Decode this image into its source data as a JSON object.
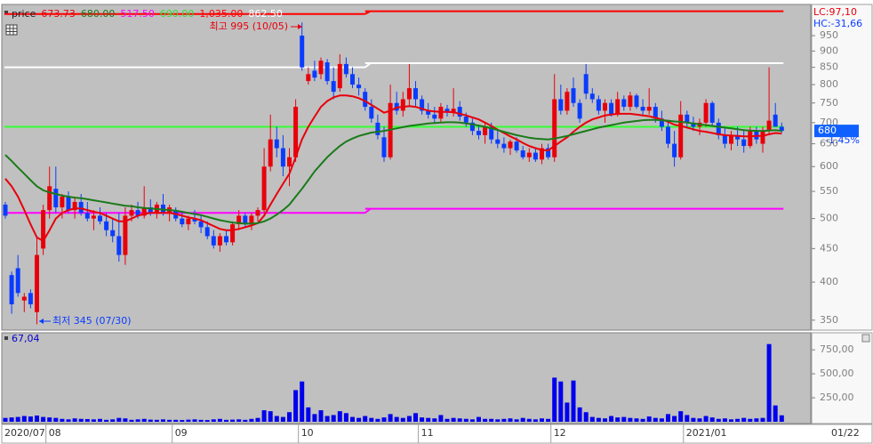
{
  "chart_data": {
    "type": "candlestick",
    "categories": [
      "2020/07",
      null,
      null,
      null,
      null,
      null,
      null,
      "08",
      null,
      null,
      null,
      null,
      null,
      null,
      null,
      null,
      null,
      null,
      null,
      null,
      null,
      null,
      null,
      null,
      null,
      null,
      null,
      "09",
      null,
      null,
      null,
      null,
      null,
      null,
      null,
      null,
      null,
      null,
      null,
      null,
      null,
      null,
      null,
      null,
      null,
      null,
      null,
      "10",
      null,
      null,
      null,
      null,
      null,
      null,
      null,
      null,
      null,
      null,
      null,
      null,
      null,
      null,
      null,
      null,
      null,
      null,
      "11",
      null,
      null,
      null,
      null,
      null,
      null,
      null,
      null,
      null,
      null,
      null,
      null,
      null,
      null,
      null,
      null,
      null,
      null,
      null,
      null,
      "12",
      null,
      null,
      null,
      null,
      null,
      null,
      null,
      null,
      null,
      null,
      null,
      null,
      null,
      null,
      null,
      null,
      null,
      null,
      null,
      null,
      "2021/01",
      null,
      null,
      null,
      null,
      null,
      null,
      null,
      null,
      null,
      null,
      null,
      null,
      null,
      null,
      null
    ],
    "last_date": "01/22",
    "ohlc": {
      "open": [
        525,
        410,
        420,
        375,
        385,
        360,
        450,
        515,
        555,
        520,
        540,
        515,
        530,
        510,
        500,
        505,
        495,
        480,
        470,
        440,
        505,
        515,
        505,
        520,
        510,
        525,
        510,
        515,
        500,
        490,
        500,
        495,
        485,
        470,
        455,
        470,
        460,
        490,
        505,
        490,
        505,
        515,
        600,
        660,
        640,
        600,
        620,
        950,
        810,
        840,
        830,
        865,
        810,
        790,
        860,
        830,
        800,
        780,
        740,
        700,
        665,
        620,
        750,
        730,
        760,
        790,
        760,
        730,
        720,
        710,
        735,
        725,
        740,
        715,
        700,
        680,
        670,
        690,
        660,
        650,
        640,
        655,
        635,
        620,
        630,
        615,
        640,
        620,
        760,
        730,
        790,
        750,
        830,
        775,
        760,
        730,
        750,
        720,
        760,
        740,
        770,
        740,
        730,
        740,
        710,
        690,
        650,
        620,
        720,
        700,
        690,
        700,
        750,
        700,
        670,
        650,
        670,
        660,
        645,
        680,
        650,
        680,
        720,
        690
      ],
      "high": [
        530,
        415,
        440,
        385,
        390,
        470,
        525,
        600,
        600,
        545,
        550,
        540,
        545,
        530,
        515,
        520,
        510,
        500,
        510,
        520,
        525,
        530,
        560,
        535,
        530,
        545,
        525,
        520,
        510,
        505,
        515,
        505,
        495,
        480,
        475,
        480,
        495,
        515,
        510,
        510,
        520,
        640,
        720,
        690,
        670,
        640,
        760,
        995,
        850,
        870,
        880,
        875,
        850,
        890,
        880,
        850,
        820,
        790,
        760,
        720,
        690,
        800,
        780,
        780,
        860,
        810,
        770,
        750,
        740,
        750,
        745,
        790,
        755,
        725,
        710,
        695,
        700,
        700,
        680,
        665,
        660,
        665,
        645,
        640,
        640,
        650,
        650,
        830,
        800,
        790,
        820,
        760,
        860,
        790,
        770,
        760,
        760,
        780,
        770,
        780,
        775,
        760,
        790,
        750,
        730,
        700,
        680,
        755,
        730,
        715,
        710,
        760,
        755,
        710,
        690,
        680,
        690,
        680,
        690,
        690,
        690,
        850,
        750,
        700
      ],
      "low": [
        500,
        358,
        380,
        360,
        365,
        345,
        440,
        500,
        510,
        500,
        510,
        500,
        505,
        495,
        480,
        490,
        470,
        460,
        430,
        425,
        495,
        500,
        500,
        505,
        500,
        505,
        495,
        495,
        485,
        480,
        490,
        475,
        465,
        450,
        445,
        455,
        455,
        480,
        485,
        480,
        495,
        510,
        590,
        620,
        580,
        560,
        610,
        840,
        800,
        810,
        815,
        800,
        760,
        780,
        820,
        790,
        770,
        730,
        700,
        660,
        610,
        615,
        720,
        715,
        740,
        740,
        720,
        710,
        700,
        700,
        715,
        715,
        705,
        690,
        670,
        660,
        650,
        650,
        640,
        630,
        625,
        630,
        615,
        610,
        610,
        605,
        615,
        610,
        720,
        720,
        740,
        700,
        760,
        750,
        720,
        700,
        715,
        715,
        730,
        730,
        735,
        720,
        720,
        700,
        680,
        640,
        600,
        615,
        690,
        680,
        670,
        690,
        690,
        660,
        640,
        635,
        645,
        630,
        640,
        650,
        630,
        670,
        690,
        675
      ],
      "close": [
        505,
        370,
        385,
        380,
        370,
        440,
        515,
        560,
        520,
        540,
        515,
        530,
        510,
        500,
        505,
        495,
        480,
        470,
        440,
        505,
        515,
        505,
        520,
        510,
        525,
        510,
        520,
        500,
        490,
        500,
        495,
        485,
        470,
        455,
        470,
        460,
        490,
        505,
        490,
        505,
        515,
        600,
        660,
        640,
        600,
        620,
        740,
        850,
        830,
        820,
        870,
        810,
        780,
        860,
        830,
        800,
        790,
        740,
        710,
        670,
        620,
        750,
        730,
        760,
        790,
        760,
        730,
        720,
        710,
        740,
        725,
        735,
        715,
        700,
        680,
        670,
        690,
        660,
        650,
        640,
        655,
        635,
        620,
        630,
        615,
        640,
        620,
        760,
        730,
        780,
        750,
        710,
        775,
        760,
        730,
        750,
        720,
        760,
        740,
        770,
        740,
        730,
        740,
        710,
        690,
        650,
        620,
        720,
        700,
        690,
        700,
        750,
        700,
        670,
        650,
        670,
        660,
        645,
        680,
        660,
        680,
        705,
        690,
        680
      ]
    },
    "up_color": "#e8000b",
    "down_color": "#0a3cff",
    "moving_averages": [
      {
        "color": "#e8000b",
        "values": [
          575,
          560,
          540,
          515,
          490,
          468,
          462,
          480,
          500,
          510,
          515,
          518,
          518,
          515,
          512,
          510,
          505,
          500,
          495,
          495,
          500,
          505,
          508,
          510,
          510,
          510,
          510,
          508,
          505,
          502,
          500,
          497,
          492,
          487,
          482,
          480,
          480,
          482,
          485,
          488,
          492,
          505,
          525,
          545,
          565,
          585,
          620,
          660,
          690,
          715,
          740,
          755,
          765,
          770,
          770,
          768,
          763,
          755,
          745,
          735,
          725,
          730,
          738,
          740,
          742,
          740,
          735,
          730,
          728,
          727,
          727,
          726,
          722,
          718,
          713,
          708,
          700,
          692,
          683,
          675,
          667,
          660,
          652,
          645,
          640,
          636,
          635,
          645,
          655,
          665,
          678,
          690,
          700,
          708,
          713,
          718,
          720,
          722,
          722,
          722,
          720,
          718,
          716,
          712,
          708,
          702,
          695,
          692,
          688,
          684,
          680,
          678,
          675,
          672,
          670,
          669,
          668,
          667,
          667,
          668,
          668,
          672,
          675,
          673.73
        ]
      },
      {
        "color": "#1a7a1a",
        "values": [
          625,
          612,
          598,
          585,
          572,
          560,
          552,
          548,
          545,
          542,
          540,
          538,
          537,
          535,
          533,
          531,
          529,
          527,
          525,
          523,
          522,
          520,
          519,
          518,
          517,
          516,
          515,
          514,
          512,
          510,
          508,
          506,
          503,
          500,
          497,
          495,
          493,
          492,
          491,
          491,
          492,
          495,
          500,
          507,
          515,
          525,
          540,
          555,
          572,
          590,
          605,
          620,
          633,
          645,
          655,
          662,
          668,
          672,
          676,
          678,
          680,
          683,
          686,
          689,
          692,
          694,
          696,
          698,
          699,
          700,
          701,
          701,
          700,
          698,
          696,
          693,
          690,
          686,
          682,
          678,
          674,
          670,
          667,
          664,
          662,
          661,
          660,
          662,
          665,
          668,
          672,
          676,
          680,
          684,
          688,
          691,
          694,
          697,
          700,
          702,
          704,
          706,
          707,
          707,
          706,
          705,
          703,
          702,
          700,
          698,
          696,
          694,
          692,
          690,
          688,
          686,
          684,
          682,
          681,
          680,
          680,
          681,
          682,
          680
        ]
      }
    ],
    "reference_lines": [
      {
        "color": "#ff0000",
        "steps": [
          [
            0,
            1025
          ],
          [
            57,
            1035
          ]
        ]
      },
      {
        "color": "#ffffff",
        "steps": [
          [
            0,
            850
          ],
          [
            57,
            862.5
          ]
        ]
      },
      {
        "color": "#ff00ff",
        "steps": [
          [
            0,
            510
          ],
          [
            57,
            517.5
          ]
        ]
      },
      {
        "color": "#33ff33",
        "steps": [
          [
            0,
            690
          ]
        ]
      }
    ],
    "log_scale": true,
    "ylim": [
      338,
      1050
    ],
    "yticks": [
      350,
      400,
      450,
      500,
      550,
      600,
      650,
      700,
      750,
      800,
      850,
      900,
      950
    ],
    "grid": false,
    "legend": {
      "label": "price",
      "items": [
        {
          "text": "673.73",
          "color": "#e8000b"
        },
        {
          "text": "680.00",
          "color": "#1a7a1a"
        },
        {
          "text": "517.50",
          "color": "#ff00ff"
        },
        {
          "text": "690.00",
          "color": "#33dd33"
        },
        {
          "text": "1,035.00",
          "color": "#ff0000"
        },
        {
          "text": "862.50",
          "color": "#ffffff"
        }
      ]
    },
    "annotations": [
      {
        "text": "최고 995 (10/05)",
        "color": "#e8000b"
      },
      {
        "text": "최저 345 (07/30)",
        "color": "#0a3cff"
      }
    ],
    "right_labels": {
      "lc": "LC:97,10",
      "hc": "HC:-31,66",
      "last_price": 680,
      "change": "-1.45%"
    },
    "volume": {
      "type": "bar",
      "legend": "67,04",
      "color": "#0000ee",
      "ylim": [
        0,
        900
      ],
      "yticks": [
        {
          "value": 250,
          "label": "250,00"
        },
        {
          "value": 500,
          "label": "500,00"
        },
        {
          "value": 750,
          "label": "750,00"
        }
      ],
      "values": [
        40,
        45,
        50,
        60,
        55,
        65,
        50,
        45,
        40,
        30,
        25,
        35,
        30,
        28,
        25,
        30,
        20,
        25,
        40,
        35,
        20,
        25,
        30,
        22,
        20,
        25,
        20,
        20,
        18,
        22,
        25,
        20,
        18,
        25,
        30,
        20,
        22,
        25,
        20,
        30,
        40,
        120,
        110,
        60,
        50,
        100,
        330,
        420,
        150,
        80,
        120,
        60,
        70,
        110,
        90,
        50,
        40,
        60,
        40,
        30,
        45,
        80,
        50,
        40,
        60,
        90,
        45,
        40,
        35,
        70,
        30,
        40,
        35,
        30,
        25,
        50,
        30,
        30,
        25,
        30,
        35,
        25,
        40,
        30,
        25,
        35,
        30,
        460,
        420,
        200,
        430,
        150,
        100,
        50,
        40,
        35,
        60,
        45,
        50,
        40,
        35,
        30,
        55,
        40,
        35,
        80,
        60,
        110,
        70,
        40,
        35,
        60,
        45,
        30,
        35,
        25,
        30,
        40,
        30,
        35,
        40,
        810,
        170,
        67.04
      ]
    }
  }
}
